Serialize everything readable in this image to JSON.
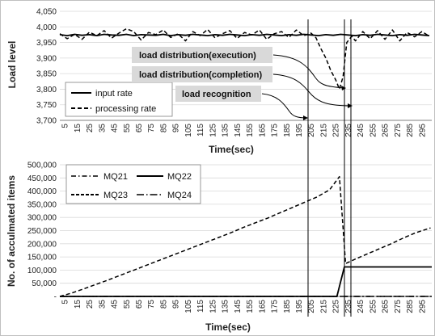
{
  "chart_data": [
    {
      "type": "line",
      "xlabel": "Time(sec)",
      "ylabel": "Load level",
      "ylim": [
        3700,
        4050
      ],
      "yticks": [
        3700,
        3750,
        3800,
        3850,
        3900,
        3950,
        4000,
        4050
      ],
      "ytick_labels": [
        "3,700",
        "3,750",
        "3,800",
        "3,850",
        "3,900",
        "3,950",
        "4,000",
        "4,050"
      ],
      "xlim": [
        1,
        303
      ],
      "xticks": [
        5,
        15,
        25,
        35,
        45,
        55,
        65,
        75,
        85,
        95,
        105,
        115,
        125,
        135,
        145,
        155,
        165,
        175,
        185,
        195,
        205,
        215,
        225,
        235,
        245,
        255,
        265,
        275,
        285,
        295
      ],
      "grid": "horizontal",
      "legend": "bottom-left",
      "series": [
        {
          "name": "input rate",
          "style": "solid",
          "x": [
            1,
            7,
            13,
            19,
            25,
            31,
            37,
            43,
            49,
            55,
            61,
            67,
            73,
            79,
            85,
            91,
            97,
            103,
            109,
            115,
            121,
            127,
            133,
            139,
            145,
            151,
            157,
            163,
            169,
            175,
            181,
            187,
            193,
            199,
            205,
            211,
            217,
            223,
            229,
            235,
            241,
            247,
            253,
            259,
            265,
            271,
            277,
            283,
            289,
            295,
            301
          ],
          "y": [
            3975,
            3972,
            3976,
            3973,
            3975,
            3972,
            3976,
            3974,
            3973,
            3976,
            3972,
            3975,
            3974,
            3973,
            3976,
            3972,
            3975,
            3973,
            3976,
            3974,
            3972,
            3975,
            3973,
            3976,
            3974,
            3972,
            3975,
            3973,
            3976,
            3974,
            3972,
            3975,
            3973,
            3976,
            3974,
            3972,
            3975,
            3973,
            3976,
            3974,
            3972,
            3975,
            3973,
            3976,
            3974,
            3972,
            3975,
            3973,
            3976,
            3974,
            3972
          ]
        },
        {
          "name": "processing rate",
          "style": "dashed",
          "x": [
            1,
            7,
            13,
            19,
            25,
            31,
            37,
            43,
            49,
            55,
            61,
            67,
            73,
            79,
            85,
            91,
            97,
            103,
            109,
            115,
            121,
            127,
            133,
            139,
            145,
            151,
            157,
            163,
            169,
            175,
            181,
            187,
            193,
            199,
            205,
            209,
            213,
            217,
            221,
            225,
            228,
            231,
            234,
            238,
            241,
            247,
            253,
            259,
            265,
            271,
            277,
            283,
            289,
            295,
            301
          ],
          "y": [
            3978,
            3962,
            3976,
            3960,
            3983,
            3972,
            3988,
            3964,
            3980,
            3994,
            3985,
            3958,
            3982,
            3975,
            3990,
            3966,
            3978,
            3955,
            3985,
            3972,
            3992,
            3965,
            3978,
            3988,
            3963,
            3982,
            3974,
            3990,
            3960,
            3978,
            3985,
            3966,
            3990,
            3972,
            3980,
            3965,
            3930,
            3900,
            3860,
            3830,
            3800,
            3840,
            3950,
            3970,
            3955,
            3985,
            3962,
            3988,
            3960,
            3990,
            3955,
            3982,
            3968,
            3985,
            3970
          ]
        }
      ],
      "annotations": [
        "load distribution(execution)",
        "load distribution(completion)",
        "load recognition"
      ]
    },
    {
      "type": "line",
      "xlabel": "Time(sec)",
      "ylabel": "No. of acculmated items",
      "ylim": [
        0,
        500000
      ],
      "yticks": [
        0,
        50000,
        100000,
        150000,
        200000,
        250000,
        300000,
        350000,
        400000,
        450000,
        500000
      ],
      "ytick_labels": [
        "-",
        "50,000",
        "100,000",
        "150,000",
        "200,000",
        "250,000",
        "300,000",
        "350,000",
        "400,000",
        "450,000",
        "500,000"
      ],
      "xlim": [
        1,
        303
      ],
      "xticks": [
        5,
        15,
        25,
        35,
        45,
        55,
        65,
        75,
        85,
        95,
        105,
        115,
        125,
        135,
        145,
        155,
        165,
        175,
        185,
        195,
        205,
        215,
        225,
        235,
        245,
        255,
        265,
        275,
        285,
        295
      ],
      "grid": "horizontal",
      "legend": "top-left",
      "series": [
        {
          "name": "MQ21",
          "style": "dash-dot",
          "x": [
            1,
            303
          ],
          "y": [
            0,
            0
          ]
        },
        {
          "name": "MQ22",
          "style": "solid",
          "x": [
            1,
            226,
            232,
            303
          ],
          "y": [
            0,
            0,
            112000,
            112000
          ]
        },
        {
          "name": "MQ23",
          "style": "dashed",
          "x": [
            1,
            10,
            20,
            30,
            40,
            50,
            60,
            70,
            80,
            90,
            100,
            110,
            120,
            130,
            140,
            150,
            160,
            170,
            180,
            190,
            200,
            210,
            220,
            228,
            233,
            240,
            250,
            260,
            270,
            280,
            290,
            302
          ],
          "y": [
            0,
            12000,
            28000,
            45000,
            62000,
            80000,
            98000,
            116000,
            134000,
            152000,
            170000,
            188000,
            206000,
            224000,
            242000,
            262000,
            280000,
            298000,
            318000,
            338000,
            358000,
            378000,
            405000,
            455000,
            125000,
            140000,
            160000,
            180000,
            200000,
            222000,
            242000,
            260000
          ]
        },
        {
          "name": "MQ24",
          "style": "long-dash-dot",
          "x": [
            1,
            303
          ],
          "y": [
            0,
            0
          ]
        }
      ]
    }
  ]
}
